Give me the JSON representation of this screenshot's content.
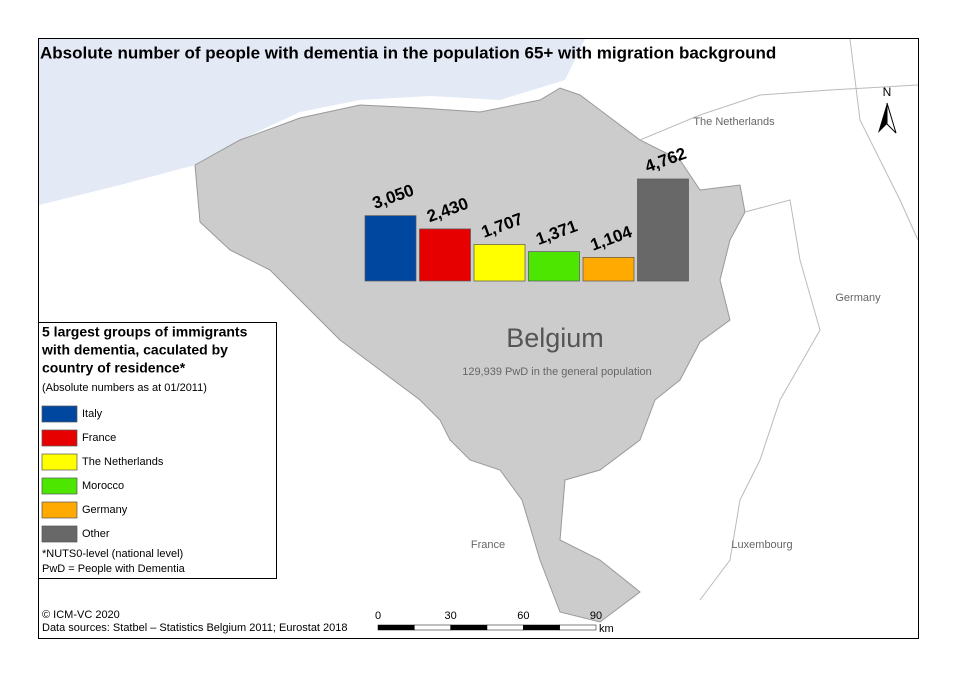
{
  "title": "Absolute number of people with dementia in the population 65+ with migration background",
  "chart_data": {
    "type": "bar",
    "categories": [
      "Italy",
      "France",
      "The Netherlands",
      "Morocco",
      "Germany",
      "Other"
    ],
    "values": [
      3050,
      2430,
      1707,
      1371,
      1104,
      4762
    ],
    "value_labels": [
      "3,050",
      "2,430",
      "1,707",
      "1,371",
      "1,104",
      "4,762"
    ],
    "colors": [
      "#0047a0",
      "#e60000",
      "#ffff00",
      "#4ce600",
      "#ffaa00",
      "#686868"
    ]
  },
  "legend": {
    "title_lines": [
      "5 largest groups of immigrants",
      "with dementia, caculated by",
      "country of residence*"
    ],
    "subtitle": "(Absolute numbers as at 01/2011)",
    "notes": [
      "*NUTS0-level (national level)",
      "PwD = People with Dementia"
    ]
  },
  "map_labels": {
    "country": "Belgium",
    "country_note": "129,939 PwD in the general population",
    "netherlands": "The Netherlands",
    "germany": "Germany",
    "france": "France",
    "luxembourg": "Luxembourg"
  },
  "north": "N",
  "scale_bar": {
    "ticks": [
      0,
      30,
      60,
      90
    ],
    "unit": "km"
  },
  "credits": [
    "© ICM-VC 2020",
    "Data sources: Statbel – Statistics Belgium 2011; Eurostat 2018"
  ]
}
